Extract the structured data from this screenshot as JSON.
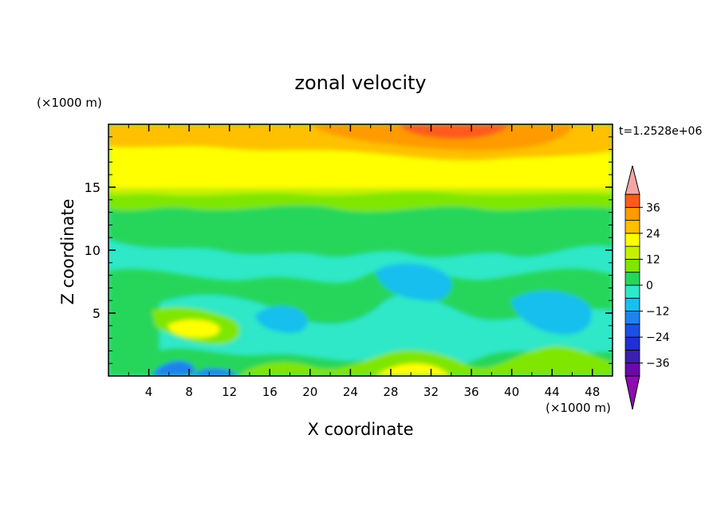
{
  "chart_data": {
    "type": "heatmap",
    "title": "zonal velocity",
    "xlabel": "X coordinate",
    "ylabel": "Z coordinate",
    "x_unit": "(×1000 m)",
    "y_unit": "(×1000 m)",
    "time_label": "t=1.2528e+06",
    "xlim": [
      0,
      50
    ],
    "ylim": [
      0,
      20
    ],
    "x_ticks": [
      4,
      8,
      12,
      16,
      20,
      24,
      28,
      32,
      36,
      40,
      44,
      48
    ],
    "y_ticks": [
      5,
      10,
      15
    ],
    "colorbar": {
      "levels": [
        -42,
        -36,
        -30,
        -24,
        -18,
        -12,
        -6,
        0,
        6,
        12,
        18,
        24,
        30,
        36,
        42
      ],
      "colors": [
        "#6a0aa8",
        "#3a1fb0",
        "#1f2fd0",
        "#1c4fe6",
        "#1f83ee",
        "#16bfee",
        "#2ee8c8",
        "#25d65a",
        "#7fe600",
        "#c6f000",
        "#ffff00",
        "#ffc000",
        "#ff9a00",
        "#ff5a1a",
        "#f01818"
      ],
      "under_color": "#8e0cb0",
      "over_color": "#f4a6a6",
      "tick_labels": [
        "36",
        "24",
        "12",
        "0",
        "−12",
        "−24",
        "−36"
      ],
      "tick_values": [
        36,
        24,
        12,
        0,
        -12,
        -24,
        -36
      ]
    }
  }
}
